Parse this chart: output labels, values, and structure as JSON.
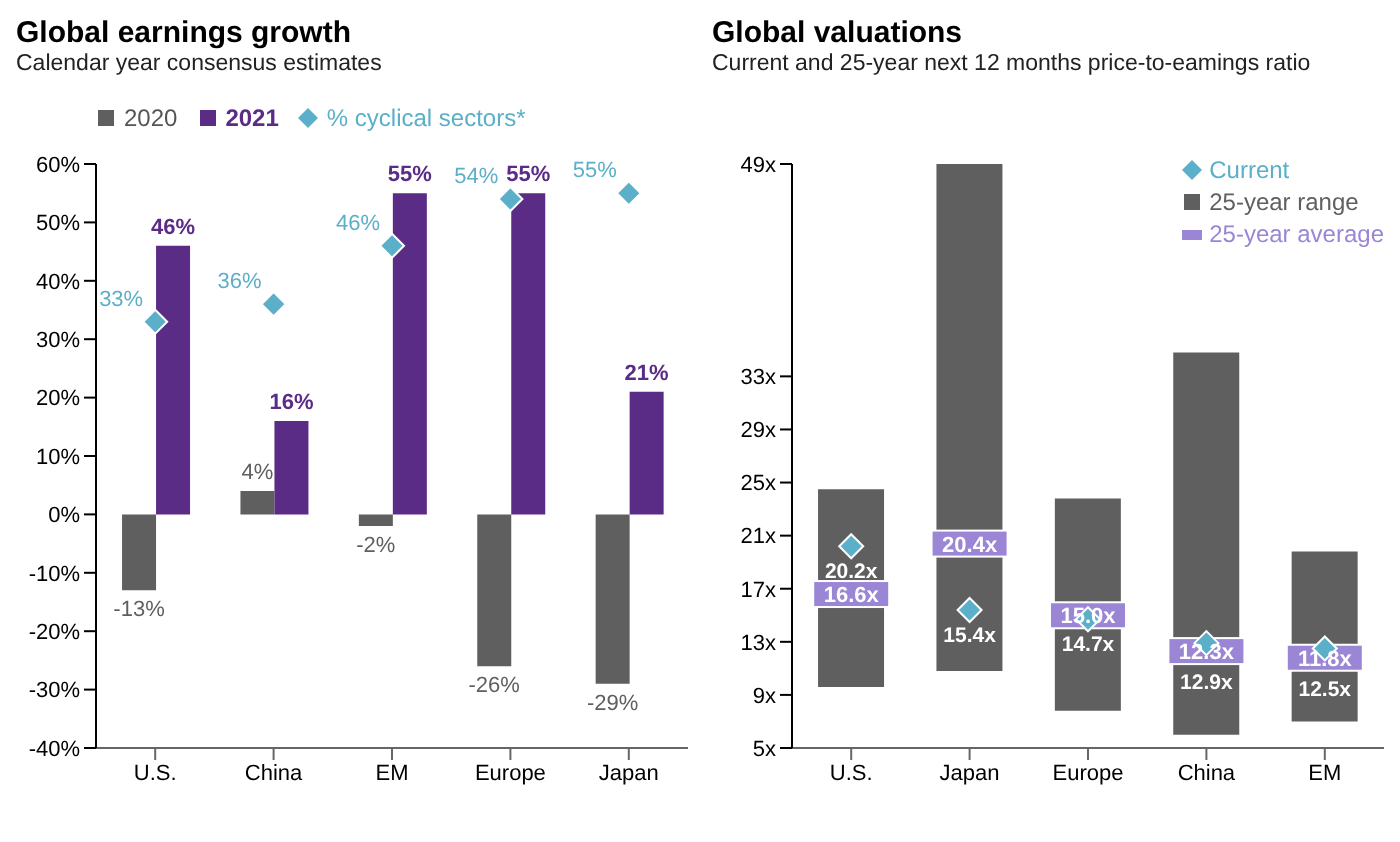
{
  "chart_data": [
    {
      "type": "bar",
      "title": "Global earnings growth",
      "subtitle": "Calendar year consensus estimates",
      "categories": [
        "U.S.",
        "China",
        "EM",
        "Europe",
        "Japan"
      ],
      "series": [
        {
          "name": "2020",
          "color": "#5f5f5f",
          "values": [
            -13,
            4,
            -2,
            -26,
            -29
          ],
          "value_labels": [
            "-13%",
            "4%",
            "-2%",
            "-26%",
            "-29%"
          ]
        },
        {
          "name": "2021",
          "color": "#5b2c86",
          "values": [
            46,
            16,
            55,
            55,
            21
          ],
          "value_labels": [
            "46%",
            "16%",
            "55%",
            "55%",
            "21%"
          ]
        },
        {
          "name": "% cyclical sectors*",
          "type": "scatter",
          "marker": "diamond",
          "color": "#5bafc8",
          "values": [
            33,
            36,
            46,
            54,
            55
          ],
          "value_labels": [
            "33%",
            "36%",
            "46%",
            "54%",
            "55%"
          ]
        }
      ],
      "ylim": [
        -40,
        60
      ],
      "yticks": [
        {
          "value": -40,
          "label": "-40%"
        },
        {
          "value": -30,
          "label": "-30%"
        },
        {
          "value": -20,
          "label": "-20%"
        },
        {
          "value": -10,
          "label": "-10%"
        },
        {
          "value": 0,
          "label": "0%"
        },
        {
          "value": 10,
          "label": "10%"
        },
        {
          "value": 20,
          "label": "20%"
        },
        {
          "value": 30,
          "label": "30%"
        },
        {
          "value": 40,
          "label": "40%"
        },
        {
          "value": 50,
          "label": "50%"
        },
        {
          "value": 60,
          "label": "60%"
        }
      ],
      "legend": "top"
    },
    {
      "type": "bar",
      "title": "Global valuations",
      "subtitle": "Current and 25-year next 12 months price-to-eamings ratio",
      "categories": [
        "U.S.",
        "Japan",
        "Europe",
        "China",
        "EM"
      ],
      "series": [
        {
          "name": "Current",
          "type": "scatter",
          "marker": "diamond",
          "color": "#5bafc8",
          "values": [
            20.2,
            15.4,
            14.7,
            12.9,
            12.5
          ],
          "value_labels": [
            "20.2x",
            "15.4x",
            "14.7x",
            "12.9x",
            "12.5x"
          ]
        },
        {
          "name": "25-year range",
          "color": "#5f5f5f",
          "base": [
            9.6,
            10.8,
            7.8,
            6.0,
            7.0
          ],
          "values": [
            14.9,
            38.2,
            16.0,
            28.8,
            12.8
          ]
        },
        {
          "name": "25-year average",
          "type": "scatter",
          "marker": "square",
          "color": "#9b86d6",
          "values": [
            16.6,
            20.4,
            15.0,
            12.3,
            11.8
          ],
          "value_labels": [
            "16.6x",
            "20.4x",
            "15.0x",
            "12.3x",
            "11.8x"
          ]
        }
      ],
      "ylim": [
        5,
        49
      ],
      "yticks": [
        {
          "value": 5,
          "label": "5x"
        },
        {
          "value": 9,
          "label": "9x"
        },
        {
          "value": 13,
          "label": "13x"
        },
        {
          "value": 17,
          "label": "17x"
        },
        {
          "value": 21,
          "label": "21x"
        },
        {
          "value": 25,
          "label": "25x"
        },
        {
          "value": 29,
          "label": "29x"
        },
        {
          "value": 33,
          "label": "33x"
        },
        {
          "value": 49,
          "label": "49x"
        }
      ],
      "legend": "top right"
    }
  ]
}
